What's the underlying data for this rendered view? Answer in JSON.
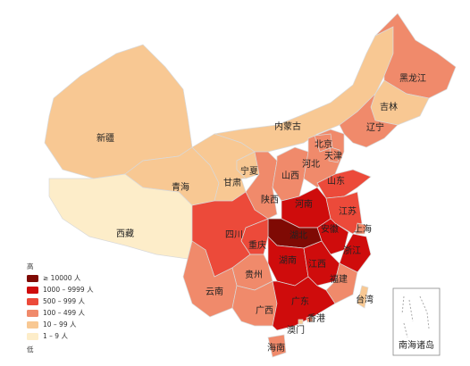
{
  "legend": {
    "high": "高",
    "low": "低",
    "items": [
      {
        "label": "≥ 10000 人",
        "color": "#7f0a04"
      },
      {
        "label": "1000 – 9999 人",
        "color": "#cf0c0c"
      },
      {
        "label": "500 – 999 人",
        "color": "#ec4a3a"
      },
      {
        "label": "100 – 499 人",
        "color": "#f08a6b"
      },
      {
        "label": "10 – 99 人",
        "color": "#f8c893"
      },
      {
        "label": "1 – 9 人",
        "color": "#fdedc9"
      }
    ]
  },
  "regions": [
    {
      "name": "新疆",
      "level": 4
    },
    {
      "name": "西藏",
      "level": 5
    },
    {
      "name": "青海",
      "level": 4
    },
    {
      "name": "内蒙古",
      "level": 4
    },
    {
      "name": "甘肃",
      "level": 4
    },
    {
      "name": "黑龙江",
      "level": 3
    },
    {
      "name": "吉林",
      "level": 4
    },
    {
      "name": "辽宁",
      "level": 3
    },
    {
      "name": "宁夏",
      "level": 4
    },
    {
      "name": "陕西",
      "level": 3
    },
    {
      "name": "山西",
      "level": 3
    },
    {
      "name": "河北",
      "level": 3
    },
    {
      "name": "北京",
      "level": 3
    },
    {
      "name": "天津",
      "level": 3
    },
    {
      "name": "山东",
      "level": 2
    },
    {
      "name": "河南",
      "level": 1
    },
    {
      "name": "江苏",
      "level": 2
    },
    {
      "name": "上海",
      "level": 3
    },
    {
      "name": "安徽",
      "level": 1
    },
    {
      "name": "浙江",
      "level": 1
    },
    {
      "name": "湖北",
      "level": 0
    },
    {
      "name": "重庆",
      "level": 2
    },
    {
      "name": "四川",
      "level": 2
    },
    {
      "name": "湖南",
      "level": 1
    },
    {
      "name": "江西",
      "level": 1
    },
    {
      "name": "福建",
      "level": 3
    },
    {
      "name": "贵州",
      "level": 3
    },
    {
      "name": "云南",
      "level": 3
    },
    {
      "name": "广西",
      "level": 3
    },
    {
      "name": "广东",
      "level": 1
    },
    {
      "name": "海南",
      "level": 3
    },
    {
      "name": "台湾",
      "level": 4
    },
    {
      "name": "香港",
      "level": 3
    },
    {
      "name": "澳门",
      "level": 4
    }
  ],
  "inset": {
    "label": "南海诸岛"
  }
}
